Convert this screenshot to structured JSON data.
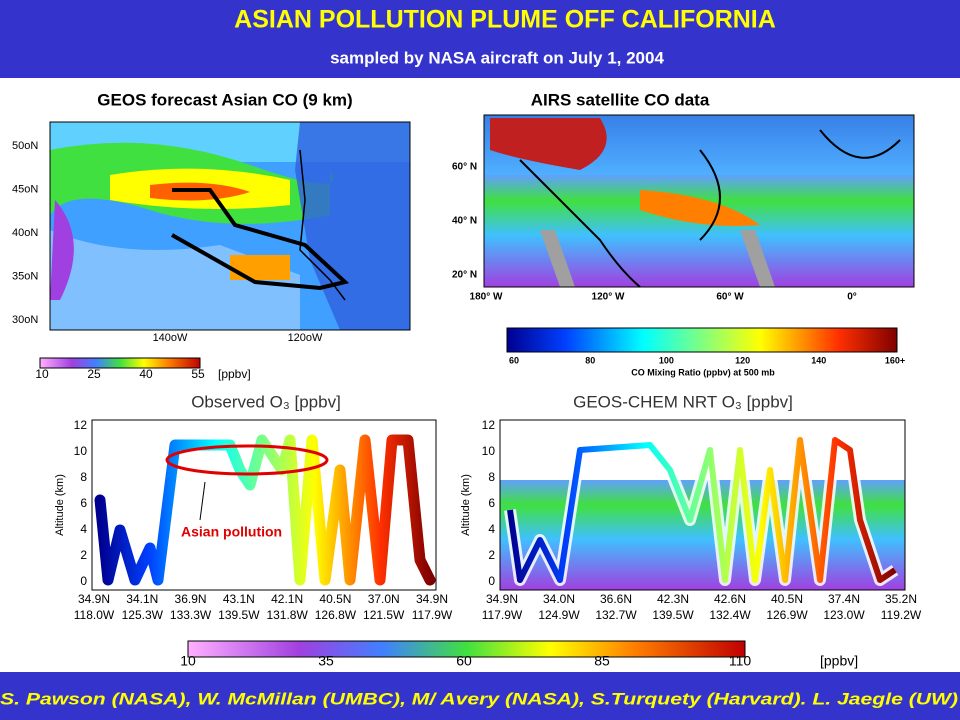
{
  "header": {
    "title": "ASIAN POLLUTION PLUME OFF CALIFORNIA",
    "subtitle": "sampled by NASA aircraft on July 1, 2004"
  },
  "geos": {
    "title": "GEOS forecast Asian CO (9 km)",
    "lat_labels": [
      "50oN",
      "45oN",
      "40oN",
      "35oN",
      "30oN"
    ],
    "lon_labels": [
      "140oW",
      "120oW"
    ],
    "colorbar_ticks": [
      "10",
      "25",
      "40",
      "55"
    ],
    "colorbar_unit": "[ppbv]"
  },
  "airs": {
    "title": "AIRS satellite CO data",
    "lat_labels": [
      "60° N",
      "40° N",
      "20° N"
    ],
    "lon_labels": [
      "180° W",
      "120° W",
      "60° W",
      "0°"
    ],
    "colorbar_ticks": [
      "60",
      "80",
      "100",
      "120",
      "140",
      "160+"
    ],
    "colorbar_label": "CO Mixing Ratio (ppbv) at 500 mb"
  },
  "observed": {
    "title": "Observed O₃ [ppbv]",
    "y_label": "Altitude (km)",
    "y_ticks": [
      "0",
      "2",
      "4",
      "6",
      "8",
      "10",
      "12"
    ],
    "x_ticks_lat": [
      "34.9N",
      "34.1N",
      "36.9N",
      "43.1N",
      "42.1N",
      "40.5N",
      "37.0N",
      "34.9N"
    ],
    "x_ticks_lon": [
      "118.0W",
      "125.3W",
      "133.3W",
      "139.5W",
      "131.8W",
      "126.8W",
      "121.5W",
      "117.9W"
    ],
    "annotation": "Asian pollution"
  },
  "model": {
    "title": "GEOS-CHEM NRT O₃ [ppbv]",
    "y_label": "Altitude (km)",
    "y_ticks": [
      "0",
      "2",
      "4",
      "6",
      "8",
      "10",
      "12"
    ],
    "x_ticks_lat": [
      "34.9N",
      "34.0N",
      "36.6N",
      "42.3N",
      "42.6N",
      "40.5N",
      "37.4N",
      "35.2N"
    ],
    "x_ticks_lon": [
      "117.9W",
      "124.9W",
      "132.7W",
      "139.5W",
      "132.4W",
      "126.9W",
      "123.0W",
      "119.2W"
    ]
  },
  "o3_colorbar": {
    "ticks": [
      "10",
      "35",
      "60",
      "85",
      "110"
    ],
    "unit": "[ppbv]"
  },
  "footer": {
    "credits": "S. Pawson (NASA), W. McMillan (UMBC), M/ Avery (NASA), S.Turquety (Harvard). L. Jaegle (UW)"
  }
}
